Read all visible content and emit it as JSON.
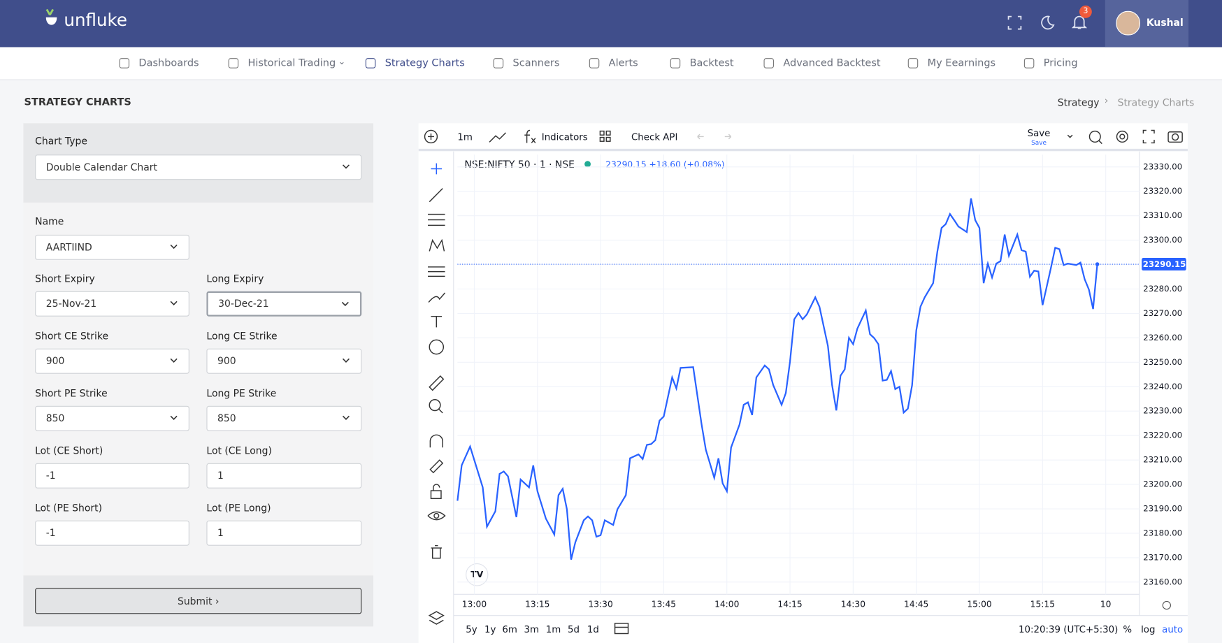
{
  "header": {
    "brand": "unfluke",
    "notifications": 3,
    "user": "Kushal"
  },
  "nav": [
    "Dashboards",
    "Historical Trading",
    "Strategy Charts",
    "Scanners",
    "Alerts",
    "Backtest",
    "Advanced Backtest",
    "My Eearnings",
    "Pricing"
  ],
  "page_title": "STRATEGY CHARTS",
  "breadcrumb": [
    "Strategy",
    "Strategy Charts"
  ],
  "form": {
    "chart_type": {
      "label": "Chart Type",
      "value": "Double Calendar Chart"
    },
    "name": {
      "label": "Name",
      "value": "AARTIIND"
    },
    "rows": [
      [
        {
          "label": "Short Expiry",
          "value": "25-Nov-21"
        },
        {
          "label": "Long Expiry",
          "value": "30-Dec-21"
        }
      ],
      [
        {
          "label": "Short CE Strike",
          "value": "900"
        },
        {
          "label": "Long CE Strike",
          "value": "900"
        }
      ],
      [
        {
          "label": "Short PE Strike",
          "value": "850"
        },
        {
          "label": "Long PE Strike",
          "value": "850"
        }
      ],
      [
        {
          "label": "Lot (CE Short)",
          "value": "-1"
        },
        {
          "label": "Lot (CE Long)",
          "value": "1"
        }
      ],
      [
        {
          "label": "Lot (PE Short)",
          "value": "-1"
        },
        {
          "label": "Lot (PE Long)",
          "value": "1"
        }
      ]
    ],
    "submit": "Submit"
  },
  "chart_ui": {
    "interval": "1m",
    "indicators": "Indicators",
    "check_api": "Check API",
    "save": "Save",
    "save_sub": "Save",
    "symbol": "NSE:NIFTY 50 · 1 · NSE",
    "quote": "23290.15 +18.60 (+0.08%)",
    "ranges": [
      "5y",
      "1y",
      "6m",
      "3m",
      "1m",
      "5d",
      "1d"
    ],
    "clock": "10:20:39 (UTC+5:30)",
    "percent": "%",
    "log": "log",
    "auto": "auto"
  },
  "chart_data": {
    "type": "line",
    "color": "#2962ff",
    "last_price": 23290.15,
    "x": [
      "12:56",
      "12:57",
      "12:59",
      "13:02",
      "13:03",
      "13:05",
      "13:06",
      "13:07",
      "13:08",
      "13:10",
      "13:11",
      "13:13",
      "13:14",
      "13:15",
      "13:17",
      "13:19",
      "13:20",
      "13:21",
      "13:22",
      "13:23",
      "13:24",
      "13:26",
      "13:27",
      "13:28",
      "13:29",
      "13:30",
      "13:31",
      "13:33",
      "13:34",
      "13:36",
      "13:37",
      "13:39",
      "13:40",
      "13:41",
      "13:42",
      "13:43",
      "13:44",
      "13:45",
      "13:47",
      "13:48",
      "13:49",
      "13:52",
      "13:54",
      "13:55",
      "13:57",
      "13:58",
      "13:59",
      "14:00",
      "14:01",
      "14:03",
      "14:04",
      "14:05",
      "14:06",
      "14:07",
      "14:09",
      "14:10",
      "14:11",
      "14:13",
      "14:14",
      "14:15",
      "14:16",
      "14:17",
      "14:18",
      "14:19",
      "14:21",
      "14:22",
      "14:24",
      "14:25",
      "14:26",
      "14:27",
      "14:28",
      "14:29",
      "14:30",
      "14:31",
      "14:33",
      "14:34",
      "14:35",
      "14:36",
      "14:37",
      "14:38",
      "14:39",
      "14:40",
      "14:41",
      "14:42",
      "14:43",
      "14:44",
      "14:45",
      "14:46",
      "14:47",
      "14:49",
      "14:50",
      "14:51",
      "14:52",
      "14:53",
      "14:54",
      "14:55",
      "14:57",
      "14:58",
      "14:59",
      "15:00",
      "15:01",
      "15:02",
      "15:03",
      "15:04",
      "15:05",
      "15:06",
      "15:07",
      "15:09",
      "15:10",
      "15:11",
      "15:12",
      "15:13",
      "15:14",
      "15:15",
      "15:17",
      "15:18",
      "15:19",
      "15:20",
      "15:21",
      "15:23",
      "15:24",
      "15:25",
      "15:26",
      "15:27",
      "15:28"
    ],
    "values": [
      23193.3,
      23207.8,
      23215.5,
      23198.8,
      23182.7,
      23189,
      23204.3,
      23205.3,
      23203.3,
      23186.6,
      23202,
      23198.8,
      23207.8,
      23197.2,
      23186,
      23179.5,
      23195.6,
      23198.2,
      23189.8,
      23169.2,
      23176.3,
      23185.3,
      23186.9,
      23185.3,
      23178.6,
      23179.2,
      23185.3,
      23183.4,
      23189.8,
      23195.6,
      23210.7,
      23212.3,
      23210.4,
      23216.2,
      23216.5,
      23218.1,
      23226.1,
      23227.8,
      23243.8,
      23239.3,
      23247.7,
      23248,
      23224.5,
      23214.2,
      23202.7,
      23210.7,
      23200.4,
      23197.2,
      23215.1,
      23224.5,
      23232.6,
      23233.6,
      23228.4,
      23243.8,
      23248.7,
      23247.1,
      23240.7,
      23232.6,
      23237.4,
      23250.3,
      23267.6,
      23270.2,
      23267.6,
      23269.6,
      23276.6,
      23272.7,
      23256.7,
      23240.6,
      23230.3,
      23244.5,
      23247.1,
      23260,
      23257.4,
      23263.8,
      23271.2,
      23261.5,
      23259.9,
      23257.4,
      23242.5,
      23242.8,
      23246.4,
      23239,
      23240,
      23229.4,
      23231,
      23240.6,
      23263.1,
      23272.8,
      23276.6,
      23282.4,
      23295.3,
      23305,
      23306.6,
      23310.7,
      23308.2,
      23305.6,
      23303.3,
      23317.1,
      23308.2,
      23305,
      23282.4,
      23290.4,
      23284.7,
      23290.4,
      23291.4,
      23302.3,
      23293.6,
      23302.3,
      23295.9,
      23295.3,
      23285,
      23287.5,
      23287.2,
      23273.4,
      23288.8,
      23296.9,
      23296.3,
      23289.8,
      23290.4,
      23289.8,
      23290.8,
      23284,
      23279.8,
      23271.8,
      23290.15
    ],
    "xlim": [
      "12:56",
      "15:38"
    ],
    "xticks": [
      "13:00",
      "13:15",
      "13:30",
      "13:45",
      "14:00",
      "14:15",
      "14:30",
      "14:45",
      "15:00",
      "15:15",
      {
        "value": "15:30",
        "label": "10"
      }
    ],
    "ylim": [
      23155,
      23335
    ],
    "yticks": [
      {
        "value": 23160,
        "label": "23160.00"
      },
      {
        "value": 23170,
        "label": "23170.00"
      },
      {
        "value": 23180,
        "label": "23180.00"
      },
      {
        "value": 23190,
        "label": "23190.00"
      },
      {
        "value": 23200,
        "label": "23200.00"
      },
      {
        "value": 23210,
        "label": "23210.00"
      },
      {
        "value": 23220,
        "label": "23220.00"
      },
      {
        "value": 23230,
        "label": "23230.00"
      },
      {
        "value": 23240,
        "label": "23240.00"
      },
      {
        "value": 23250,
        "label": "23250.00"
      },
      {
        "value": 23260,
        "label": "23260.00"
      },
      {
        "value": 23270,
        "label": "23270.00"
      },
      {
        "value": 23280,
        "label": "23280.00"
      },
      {
        "value": 23290,
        "label": "23290.00"
      },
      {
        "value": 23300,
        "label": "23300.00"
      },
      {
        "value": 23310,
        "label": "23310.00"
      },
      {
        "value": 23320,
        "label": "23320.00"
      },
      {
        "value": 23330,
        "label": "23330.00"
      }
    ],
    "grid": true
  }
}
